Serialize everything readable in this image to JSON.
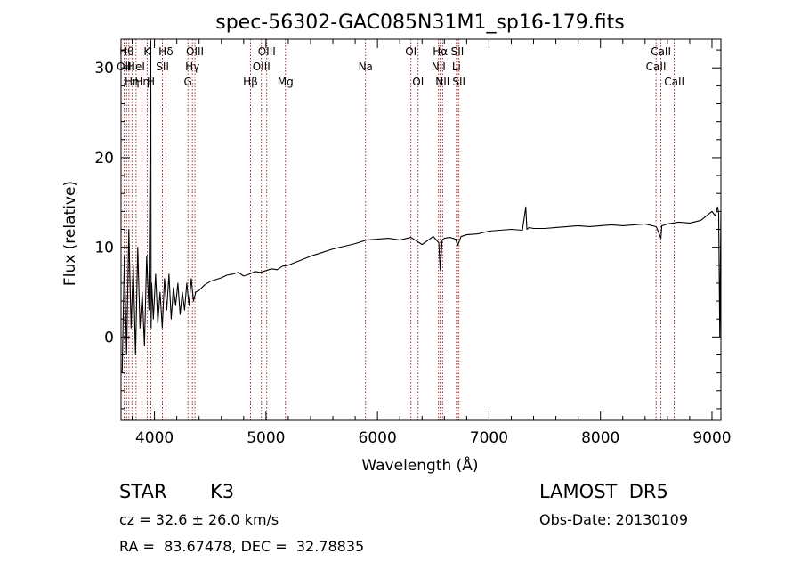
{
  "chart_data": {
    "type": "line",
    "title": "spec-56302-GAC085N31M1_sp16-179.fits",
    "xlabel": "Wavelength (Å)",
    "ylabel": "Flux (relative)",
    "xlim": [
      3700,
      9080
    ],
    "ylim": [
      -9.3,
      33.2
    ],
    "xticks": [
      4000,
      5000,
      6000,
      7000,
      8000,
      9000
    ],
    "yticks": [
      0,
      10,
      20,
      30
    ],
    "grid": false,
    "legend": "none",
    "line_color": "#000000",
    "marker_color": "#8b0000",
    "series": [
      {
        "x": [
          3710,
          3730,
          3750,
          3770,
          3790,
          3810,
          3830,
          3850,
          3870,
          3890,
          3910,
          3930,
          3950,
          3967,
          3970,
          3975,
          3990,
          4010,
          4030,
          4050,
          4070,
          4090,
          4110,
          4130,
          4150,
          4170,
          4190,
          4210,
          4230,
          4250,
          4270,
          4290,
          4310,
          4330,
          4350,
          4370,
          4400,
          4450,
          4500,
          4550,
          4600,
          4650,
          4700,
          4750,
          4800,
          4850,
          4900,
          4950,
          5000,
          5050,
          5100,
          5150,
          5200,
          5300,
          5400,
          5500,
          5600,
          5700,
          5800,
          5900,
          6000,
          6100,
          6200,
          6300,
          6400,
          6500,
          6550,
          6563,
          6580,
          6600,
          6650,
          6700,
          6720,
          6750,
          6800,
          6900,
          7000,
          7100,
          7200,
          7300,
          7330,
          7340,
          7360,
          7400,
          7500,
          7600,
          7700,
          7800,
          7900,
          8000,
          8100,
          8200,
          8300,
          8400,
          8500,
          8542,
          8550,
          8600,
          8700,
          8800,
          8900,
          8950,
          9000,
          9030,
          9050,
          9060,
          9070,
          9080
        ],
        "y": [
          -4.0,
          9.0,
          -2.0,
          12.0,
          1.0,
          8.0,
          -2.0,
          10.0,
          1.0,
          5.0,
          -1.0,
          9.0,
          3.0,
          33.0,
          1.0,
          6.0,
          2.0,
          7.0,
          1.5,
          5.0,
          1.0,
          6.5,
          3.0,
          7.0,
          2.0,
          5.5,
          3.5,
          6.0,
          2.5,
          5.0,
          3.0,
          6.0,
          3.5,
          6.5,
          4.0,
          5.0,
          5.2,
          5.8,
          6.2,
          6.4,
          6.6,
          6.9,
          7.0,
          7.2,
          6.8,
          7.0,
          7.3,
          7.2,
          7.4,
          7.6,
          7.5,
          7.9,
          8.0,
          8.5,
          9.0,
          9.4,
          9.8,
          10.1,
          10.4,
          10.8,
          10.9,
          11.0,
          10.8,
          11.1,
          10.3,
          11.2,
          10.5,
          7.5,
          10.8,
          11.0,
          11.1,
          10.9,
          10.2,
          11.2,
          11.4,
          11.5,
          11.8,
          11.9,
          12.0,
          11.9,
          14.5,
          12.0,
          12.2,
          12.1,
          12.1,
          12.2,
          12.3,
          12.4,
          12.3,
          12.4,
          12.5,
          12.4,
          12.5,
          12.6,
          12.3,
          11.0,
          12.4,
          12.6,
          12.8,
          12.7,
          13.0,
          13.5,
          14.0,
          13.5,
          14.5,
          13.8,
          0.0,
          14.2
        ]
      }
    ],
    "line_markers": [
      {
        "x": 3727,
        "label": "OII",
        "row": 2
      },
      {
        "x": 3750,
        "label": "Hθ",
        "row": 1
      },
      {
        "x": 3771,
        "label": "HI",
        "row": 2
      },
      {
        "x": 3798,
        "label": "Hη",
        "row": 3
      },
      {
        "x": 3835,
        "label": "HeI",
        "row": 2
      },
      {
        "x": 3889,
        "label": "Hη",
        "row": 3
      },
      {
        "x": 3934,
        "label": "K",
        "row": 1
      },
      {
        "x": 3968,
        "label": "H",
        "row": 3
      },
      {
        "x": 4072,
        "label": "SII",
        "row": 2
      },
      {
        "x": 4102,
        "label": "Hδ",
        "row": 1
      },
      {
        "x": 4300,
        "label": "G",
        "row": 3
      },
      {
        "x": 4340,
        "label": "Hγ",
        "row": 2
      },
      {
        "x": 4363,
        "label": "OIII",
        "row": 1
      },
      {
        "x": 4861,
        "label": "Hβ",
        "row": 3
      },
      {
        "x": 4959,
        "label": "OIII",
        "row": 2
      },
      {
        "x": 5007,
        "label": "OIII",
        "row": 1
      },
      {
        "x": 5175,
        "label": "Mg",
        "row": 3
      },
      {
        "x": 5893,
        "label": "Na",
        "row": 2
      },
      {
        "x": 6300,
        "label": "OI",
        "row": 1
      },
      {
        "x": 6364,
        "label": "OI",
        "row": 3
      },
      {
        "x": 6548,
        "label": "NII",
        "row": 2
      },
      {
        "x": 6563,
        "label": "Hα",
        "row": 1
      },
      {
        "x": 6584,
        "label": "NII",
        "row": 3
      },
      {
        "x": 6708,
        "label": "Li",
        "row": 2
      },
      {
        "x": 6717,
        "label": "SII",
        "row": 1
      },
      {
        "x": 6731,
        "label": "SII",
        "row": 3
      },
      {
        "x": 8498,
        "label": "CaII",
        "row": 2
      },
      {
        "x": 8542,
        "label": "CaII",
        "row": 1
      },
      {
        "x": 8662,
        "label": "CaII",
        "row": 3
      }
    ]
  },
  "info": {
    "object_type": "STAR",
    "subclass": "K3",
    "survey": "LAMOST  DR5",
    "cz": "cz = 32.6 ± 26.0 km/s",
    "obs_date": "Obs-Date: 20130109",
    "coords": "RA =  83.67478, DEC =  32.78835"
  }
}
